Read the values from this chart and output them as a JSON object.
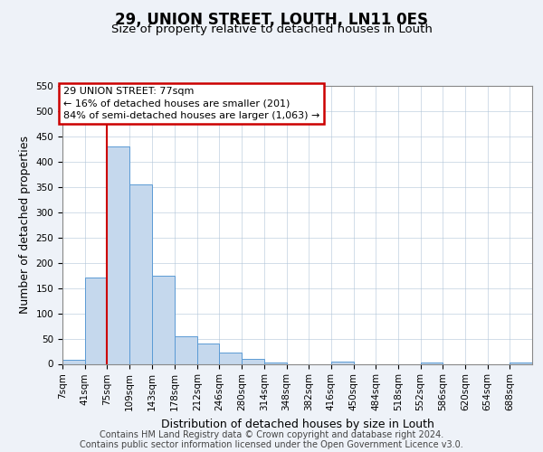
{
  "title": "29, UNION STREET, LOUTH, LN11 0ES",
  "subtitle": "Size of property relative to detached houses in Louth",
  "xlabel": "Distribution of detached houses by size in Louth",
  "ylabel": "Number of detached properties",
  "bin_labels": [
    "7sqm",
    "41sqm",
    "75sqm",
    "109sqm",
    "143sqm",
    "178sqm",
    "212sqm",
    "246sqm",
    "280sqm",
    "314sqm",
    "348sqm",
    "382sqm",
    "416sqm",
    "450sqm",
    "484sqm",
    "518sqm",
    "552sqm",
    "586sqm",
    "620sqm",
    "654sqm",
    "688sqm"
  ],
  "bin_edges": [
    7,
    41,
    75,
    109,
    143,
    178,
    212,
    246,
    280,
    314,
    348,
    382,
    416,
    450,
    484,
    518,
    552,
    586,
    620,
    654,
    688,
    722
  ],
  "bar_color": "#c5d8ed",
  "bar_edge_color": "#5b9bd5",
  "bar_values_full": [
    8,
    170,
    430,
    355,
    175,
    55,
    40,
    22,
    10,
    2,
    0,
    0,
    4,
    0,
    0,
    0,
    2,
    0,
    0,
    0,
    2
  ],
  "red_line_x": 75,
  "annotation_title": "29 UNION STREET: 77sqm",
  "annotation_line1": "← 16% of detached houses are smaller (201)",
  "annotation_line2": "84% of semi-detached houses are larger (1,063) →",
  "annotation_box_color": "#ffffff",
  "annotation_box_edge_color": "#cc0000",
  "red_line_color": "#cc0000",
  "ylim": [
    0,
    550
  ],
  "yticks": [
    0,
    50,
    100,
    150,
    200,
    250,
    300,
    350,
    400,
    450,
    500,
    550
  ],
  "footer_line1": "Contains HM Land Registry data © Crown copyright and database right 2024.",
  "footer_line2": "Contains public sector information licensed under the Open Government Licence v3.0.",
  "background_color": "#eef2f8",
  "plot_bg_color": "#ffffff",
  "title_fontsize": 12,
  "subtitle_fontsize": 9.5,
  "axis_label_fontsize": 9,
  "tick_fontsize": 7.5,
  "footer_fontsize": 7
}
